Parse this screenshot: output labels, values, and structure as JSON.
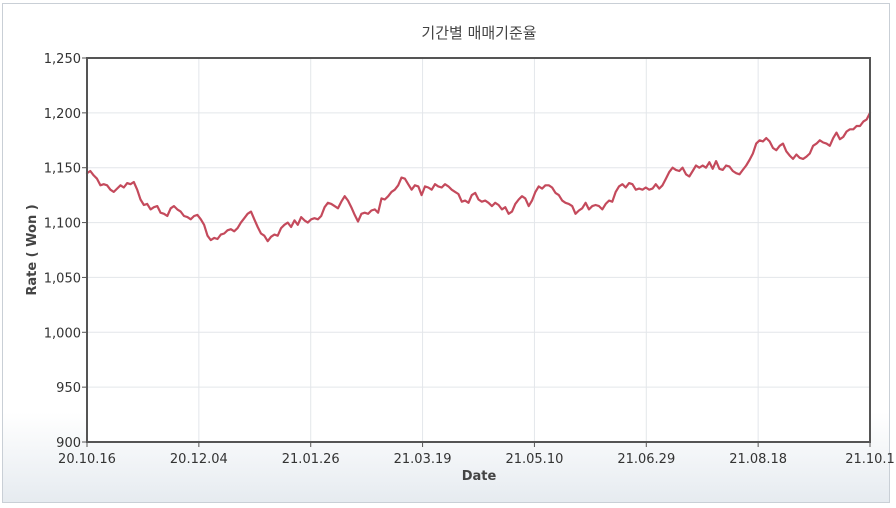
{
  "chart_data": {
    "type": "line",
    "title": "기간별 매매기준율",
    "xlabel": "Date",
    "ylabel": "Rate ( Won )",
    "ylim": [
      900,
      1250
    ],
    "y_ticks": [
      "900",
      "950",
      "1,000",
      "1,050",
      "1,100",
      "1,150",
      "1,200",
      "1,250"
    ],
    "x_tick_labels": [
      "20.10.16",
      "20.12.04",
      "21.01.26",
      "21.03.19",
      "21.05.10",
      "21.06.29",
      "21.08.18",
      "21.10.1"
    ],
    "grid": true,
    "color": "#c44a5c",
    "series": [
      {
        "values": [
          1145,
          1147,
          1143,
          1140,
          1134,
          1135,
          1134,
          1130,
          1128,
          1131,
          1134,
          1132,
          1136,
          1135,
          1137,
          1130,
          1121,
          1116,
          1117,
          1112,
          1114,
          1115,
          1109,
          1108,
          1106,
          1113,
          1115,
          1112,
          1110,
          1106,
          1105,
          1103,
          1106,
          1107,
          1103,
          1098,
          1088,
          1084,
          1086,
          1085,
          1089,
          1090,
          1093,
          1094,
          1092,
          1095,
          1100,
          1104,
          1108,
          1110,
          1103,
          1096,
          1090,
          1088,
          1083,
          1087,
          1089,
          1088,
          1095,
          1098,
          1100,
          1096,
          1102,
          1098,
          1105,
          1102,
          1100,
          1103,
          1104,
          1103,
          1106,
          1114,
          1118,
          1117,
          1115,
          1113,
          1119,
          1124,
          1120,
          1114,
          1107,
          1101,
          1108,
          1109,
          1108,
          1111,
          1112,
          1109,
          1122,
          1121,
          1124,
          1128,
          1130,
          1134,
          1141,
          1140,
          1135,
          1130,
          1134,
          1133,
          1125,
          1133,
          1132,
          1130,
          1135,
          1133,
          1132,
          1135,
          1133,
          1130,
          1128,
          1126,
          1119,
          1120,
          1118,
          1125,
          1127,
          1121,
          1119,
          1120,
          1118,
          1115,
          1118,
          1116,
          1112,
          1114,
          1108,
          1110,
          1117,
          1121,
          1124,
          1122,
          1115,
          1120,
          1128,
          1133,
          1131,
          1134,
          1134,
          1132,
          1127,
          1125,
          1120,
          1118,
          1117,
          1115,
          1108,
          1111,
          1113,
          1118,
          1112,
          1115,
          1116,
          1115,
          1112,
          1117,
          1120,
          1119,
          1128,
          1133,
          1135,
          1132,
          1136,
          1135,
          1130,
          1131,
          1130,
          1132,
          1130,
          1131,
          1135,
          1131,
          1134,
          1140,
          1146,
          1150,
          1148,
          1147,
          1150,
          1144,
          1142,
          1147,
          1152,
          1150,
          1152,
          1150,
          1155,
          1149,
          1156,
          1149,
          1148,
          1152,
          1151,
          1147,
          1145,
          1144,
          1148,
          1152,
          1157,
          1163,
          1172,
          1175,
          1174,
          1177,
          1174,
          1168,
          1166,
          1170,
          1172,
          1165,
          1161,
          1158,
          1162,
          1159,
          1158,
          1160,
          1163,
          1170,
          1172,
          1175,
          1173,
          1172,
          1170,
          1177,
          1182,
          1176,
          1178,
          1183,
          1185,
          1185,
          1188,
          1188,
          1192,
          1194,
          1200
        ]
      }
    ]
  }
}
